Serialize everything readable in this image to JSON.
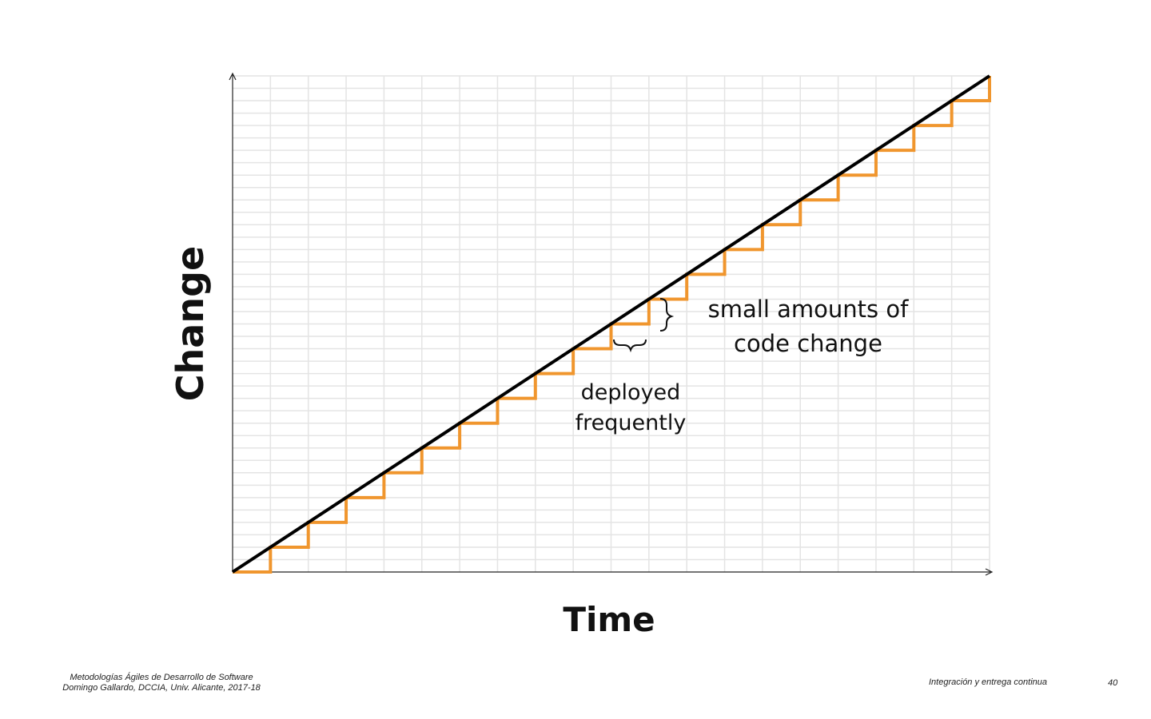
{
  "chart_data": {
    "type": "line",
    "xlabel": "Time",
    "ylabel": "Change",
    "x": [
      0,
      1,
      2,
      3,
      4,
      5,
      6,
      7,
      8,
      9,
      10,
      11,
      12,
      13,
      14,
      15,
      16,
      17,
      18,
      19,
      20
    ],
    "series": [
      {
        "values": [
          0,
          1,
          2,
          3,
          4,
          5,
          6,
          7,
          8,
          9,
          10,
          11,
          12,
          13,
          14,
          15,
          16,
          17,
          18,
          19,
          20
        ]
      },
      {
        "values": [
          0,
          1,
          2,
          3,
          4,
          5,
          6,
          7,
          8,
          9,
          10,
          11,
          12,
          13,
          14,
          15,
          16,
          17,
          18,
          19,
          20
        ],
        "step": "pre"
      }
    ],
    "xlim": [
      0,
      20
    ],
    "ylim": [
      0,
      20
    ],
    "grid": true,
    "colors": {
      "trend": "#000000",
      "steps": "#f0962e",
      "grid": "#e4e4e4"
    },
    "annotations": [
      {
        "text_lines": [
          "small amounts of",
          "code change"
        ],
        "target": "vertical step"
      },
      {
        "text_lines": [
          "deployed",
          "frequently"
        ],
        "target": "horizontal step"
      }
    ]
  },
  "footer": {
    "course_line1": "Metodologías Ágiles de Desarrollo de Software",
    "course_line2": "Domingo Gallardo, DCCIA, Univ. Alicante, 2017-18",
    "section": "Integración y entrega continua",
    "page": "40"
  }
}
